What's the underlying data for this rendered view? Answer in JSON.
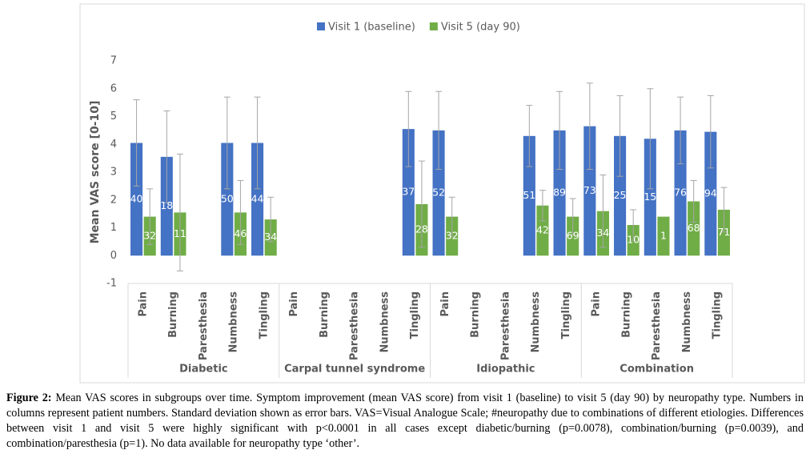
{
  "chart_data": {
    "type": "bar",
    "y_label": "Mean VAS score [0-10]",
    "groups": [
      {
        "name": "Diabetic",
        "categories": [
          "Pain",
          "Burning",
          "Paresthesia",
          "Numbness",
          "Tingling"
        ]
      },
      {
        "name": "Carpal tunnel syndrome",
        "categories": [
          "Pain",
          "Burning",
          "Paresthesia",
          "Numbness",
          "Tingling"
        ]
      },
      {
        "name": "Idiopathic",
        "categories": [
          "Pain",
          "Burning",
          "Paresthesia",
          "Numbness",
          "Tingling"
        ]
      },
      {
        "name": "Combination",
        "categories": [
          "Pain",
          "Burning",
          "Paresthesia",
          "Numbness",
          "Tingling"
        ]
      }
    ],
    "series": [
      {
        "name": "Visit 1 (baseline)",
        "color": "#4472c4",
        "values": [
          4.05,
          3.55,
          null,
          4.05,
          4.05,
          null,
          null,
          null,
          null,
          4.55,
          4.5,
          null,
          null,
          4.3,
          4.5,
          4.65,
          4.3,
          4.2,
          4.5,
          4.45
        ],
        "errors": [
          1.55,
          1.65,
          null,
          1.65,
          1.65,
          null,
          null,
          null,
          null,
          1.35,
          1.4,
          null,
          null,
          1.1,
          1.4,
          1.55,
          1.45,
          1.8,
          1.2,
          1.3
        ],
        "counts": [
          40,
          18,
          null,
          50,
          44,
          null,
          null,
          null,
          null,
          37,
          52,
          null,
          null,
          51,
          89,
          73,
          25,
          15,
          76,
          94
        ]
      },
      {
        "name": "Visit 5 (day 90)",
        "color": "#70ad47",
        "values": [
          1.4,
          1.55,
          null,
          1.55,
          1.3,
          null,
          null,
          null,
          null,
          1.85,
          1.4,
          null,
          null,
          1.8,
          1.4,
          1.6,
          1.1,
          1.4,
          1.95,
          1.65
        ],
        "errors": [
          1.0,
          2.1,
          null,
          1.15,
          0.8,
          null,
          null,
          null,
          null,
          1.55,
          0.7,
          null,
          null,
          0.55,
          0.65,
          1.3,
          0.55,
          null,
          0.75,
          0.8
        ],
        "counts": [
          32,
          11,
          null,
          46,
          34,
          null,
          null,
          null,
          null,
          28,
          32,
          null,
          null,
          42,
          69,
          34,
          10,
          1,
          68,
          71
        ]
      }
    ],
    "ylim": [
      -1,
      7
    ],
    "yticks": [
      -1,
      0,
      1,
      2,
      3,
      4,
      5,
      6,
      7
    ],
    "grid": false,
    "legend": "top"
  },
  "caption": {
    "label": "Figure 2:",
    "text": "Mean VAS scores in subgroups over time. Symptom improvement (mean VAS score) from visit 1 (baseline) to visit 5 (day 90) by neuropathy type. Numbers in columns represent patient numbers. Standard deviation shown as error bars. VAS=Visual Analogue Scale; #neuropathy due to combinations of different etiologies. Differences between visit 1 and visit 5 were highly significant with p<0.0001 in all cases except diabetic/burning (p=0.0078), combination/burning (p=0.0039), and combination/paresthesia (p=1). No data available for neuropathy type ‘other’."
  }
}
